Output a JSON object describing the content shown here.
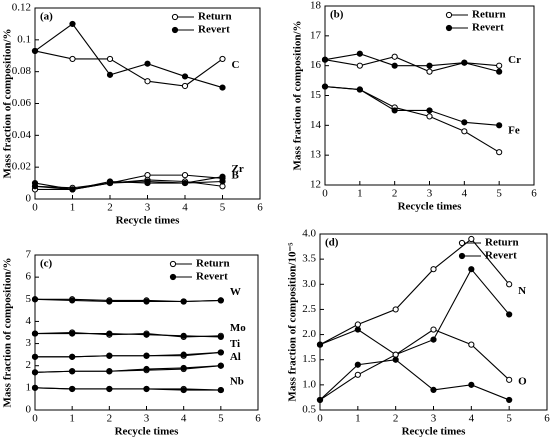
{
  "chart_data": [
    {
      "type": "line",
      "panel_label": "(a)",
      "x_label": "Recycle times",
      "y_label": "Mass fraction of composition/%",
      "x": [
        0,
        1,
        2,
        3,
        4,
        5
      ],
      "xlim": [
        0,
        6
      ],
      "xticks": [
        0,
        1,
        2,
        3,
        4,
        5,
        6
      ],
      "ylim": [
        0,
        0.12
      ],
      "yticks": [
        0,
        0.02,
        0.04,
        0.06,
        0.08,
        0.1,
        0.12
      ],
      "legend_position": "top-right",
      "series": [
        {
          "name": "Return",
          "marker": "open"
        },
        {
          "name": "Revert",
          "marker": "filled"
        }
      ],
      "groups": [
        {
          "label": "C",
          "values": [
            [
              0.093,
              0.088,
              0.088,
              0.074,
              0.071,
              0.088
            ],
            [
              0.093,
              0.11,
              0.078,
              0.085,
              0.077,
              0.07
            ]
          ]
        },
        {
          "label": "Zr",
          "values": [
            [
              0.008,
              0.007,
              0.01,
              0.015,
              0.015,
              0.013
            ],
            [
              0.01,
              0.006,
              0.011,
              0.01,
              0.01,
              0.014
            ]
          ]
        },
        {
          "label": "B",
          "values": [
            [
              0.006,
              0.006,
              0.01,
              0.012,
              0.011,
              0.008
            ],
            [
              0.008,
              0.006,
              0.01,
              0.011,
              0.01,
              0.011
            ]
          ]
        }
      ]
    },
    {
      "type": "line",
      "panel_label": "(b)",
      "x_label": "Recycle times",
      "y_label": "Mass fraction of composition/%",
      "x": [
        0,
        1,
        2,
        3,
        4,
        5
      ],
      "xlim": [
        0,
        6
      ],
      "xticks": [
        0,
        1,
        2,
        3,
        4,
        5,
        6
      ],
      "ylim": [
        12,
        18
      ],
      "yticks": [
        12,
        13,
        14,
        15,
        16,
        17,
        18
      ],
      "legend_position": "top-right",
      "series": [
        {
          "name": "Return",
          "marker": "open"
        },
        {
          "name": "Revert",
          "marker": "filled"
        }
      ],
      "groups": [
        {
          "label": "Cr",
          "values": [
            [
              16.2,
              16.0,
              16.3,
              15.8,
              16.1,
              16.0
            ],
            [
              16.2,
              16.4,
              16.0,
              16.0,
              16.1,
              15.8
            ]
          ]
        },
        {
          "label": "Fe",
          "values": [
            [
              15.3,
              15.2,
              14.6,
              14.3,
              13.8,
              13.1
            ],
            [
              15.3,
              15.2,
              14.5,
              14.5,
              14.1,
              14.0
            ]
          ]
        }
      ]
    },
    {
      "type": "line",
      "panel_label": "(c)",
      "x_label": "Recycle times",
      "y_label": "Mass fraction of composition/%",
      "x": [
        0,
        1,
        2,
        3,
        4,
        5
      ],
      "xlim": [
        0,
        6
      ],
      "xticks": [
        0,
        1,
        2,
        3,
        4,
        5,
        6
      ],
      "ylim": [
        0,
        7
      ],
      "yticks": [
        0,
        1,
        2,
        3,
        4,
        5,
        6,
        7
      ],
      "legend_position": "top-right",
      "series": [
        {
          "name": "Return",
          "marker": "open"
        },
        {
          "name": "Revert",
          "marker": "filled"
        }
      ],
      "groups": [
        {
          "label": "W",
          "values": [
            [
              5.0,
              5.0,
              4.95,
              4.95,
              4.9,
              4.95
            ],
            [
              5.0,
              4.95,
              4.9,
              4.9,
              4.9,
              4.95
            ]
          ]
        },
        {
          "label": "Mo",
          "values": [
            [
              3.45,
              3.5,
              3.4,
              3.45,
              3.3,
              3.35
            ],
            [
              3.45,
              3.45,
              3.45,
              3.4,
              3.35,
              3.3
            ]
          ]
        },
        {
          "label": "Ti",
          "values": [
            [
              2.4,
              2.4,
              2.45,
              2.45,
              2.45,
              2.6
            ],
            [
              2.4,
              2.4,
              2.45,
              2.45,
              2.5,
              2.6
            ]
          ]
        },
        {
          "label": "Al",
          "values": [
            [
              1.7,
              1.75,
              1.75,
              1.8,
              1.85,
              2.0
            ],
            [
              1.7,
              1.75,
              1.75,
              1.85,
              1.9,
              2.0
            ]
          ]
        },
        {
          "label": "Nb",
          "values": [
            [
              1.0,
              0.95,
              0.95,
              0.95,
              0.95,
              0.9
            ],
            [
              1.0,
              0.95,
              0.95,
              0.95,
              0.9,
              0.9
            ]
          ]
        }
      ]
    },
    {
      "type": "line",
      "panel_label": "(d)",
      "x_label": "Recycle times",
      "y_label": "Mass fraction of composition/10⁻⁵",
      "x": [
        0,
        1,
        2,
        3,
        4,
        5
      ],
      "xlim": [
        0,
        6
      ],
      "xticks": [
        0,
        1,
        2,
        3,
        4,
        5,
        6
      ],
      "ylim": [
        0.5,
        4.0
      ],
      "yticks": [
        {
          "value": 0.5,
          "label": "0.5"
        },
        {
          "value": 1,
          "label": "1.0"
        },
        {
          "value": 1.5,
          "label": "1.5"
        },
        {
          "value": 2,
          "label": "2.0"
        },
        {
          "value": 2.5,
          "label": "2.5"
        },
        {
          "value": 3,
          "label": "3.0"
        },
        {
          "value": 3.5,
          "label": "3.5"
        },
        {
          "value": 4,
          "label": "4.0"
        }
      ],
      "legend_position": "top-right",
      "series": [
        {
          "name": "Return",
          "marker": "open"
        },
        {
          "name": "Revert",
          "marker": "filled"
        }
      ],
      "groups": [
        {
          "label": "N",
          "values": [
            [
              1.8,
              2.2,
              2.5,
              3.3,
              3.9,
              3.0
            ],
            [
              1.8,
              2.1,
              1.6,
              1.9,
              3.3,
              2.4
            ]
          ]
        },
        {
          "label": "O",
          "values": [
            [
              0.7,
              1.2,
              1.6,
              2.1,
              1.8,
              1.1
            ],
            [
              0.7,
              1.4,
              1.5,
              0.9,
              1.0,
              0.7
            ]
          ]
        }
      ]
    }
  ]
}
